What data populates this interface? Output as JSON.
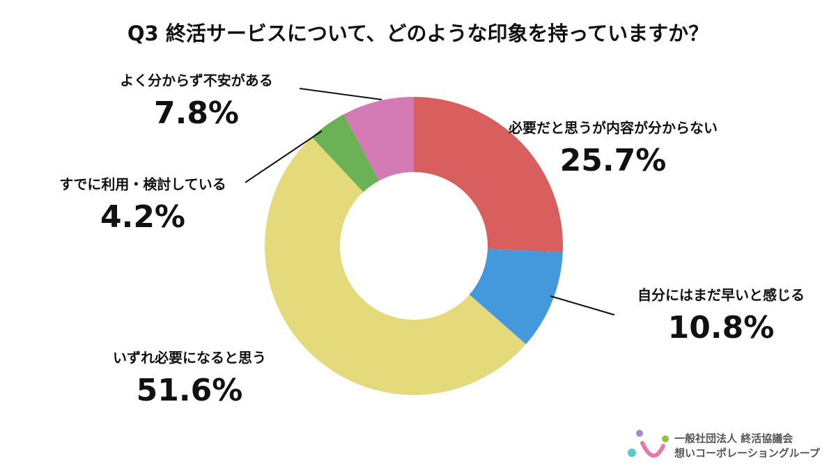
{
  "chart_data": {
    "type": "donut",
    "title": "Q3 終活サービスについて、どのような印象を持っていますか？",
    "categories": [
      "必要だと思うが内容が分からない",
      "自分にはまだ早いと感じる",
      "いずれ必要になると思う",
      "すでに利用・検討している",
      "よく分からず不安がある"
    ],
    "values": [
      25.7,
      10.8,
      51.6,
      4.2,
      7.8
    ],
    "value_labels": [
      "25.7%",
      "10.8%",
      "51.6%",
      "4.2%",
      "7.8%"
    ],
    "colors": [
      "#d95f5e",
      "#4499dc",
      "#e4d97b",
      "#6bb155",
      "#d47ab5"
    ]
  },
  "logo": {
    "line1": "一般社団法人 終活協議会",
    "line2": "想いコーポレーショングループ"
  }
}
